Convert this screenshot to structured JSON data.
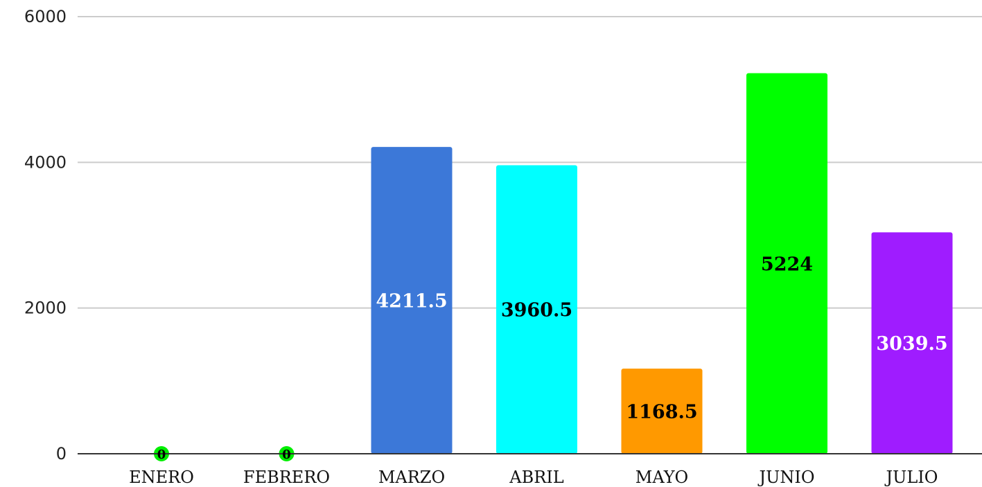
{
  "chart_data": {
    "type": "bar",
    "title": "",
    "xlabel": "",
    "ylabel": "",
    "ylim": [
      0,
      6000
    ],
    "yticks": [
      0,
      2000,
      4000,
      6000
    ],
    "ytick_labels": [
      "0",
      "2000",
      "4000",
      "6000"
    ],
    "grid": true,
    "legend": "none",
    "categories": [
      "ENERO",
      "FEBRERO",
      "MARZO",
      "ABRIL",
      "MAYO",
      "JUNIO",
      "JULIO"
    ],
    "values": [
      0,
      0,
      4211.5,
      3960.5,
      1168.5,
      5224,
      3039.5
    ],
    "data_labels": [
      "0",
      "0",
      "4211.5",
      "3960.5",
      "1168.5",
      "5224",
      "3039.5"
    ],
    "colors": [
      "#00ee00",
      "#00ee00",
      "#3c78d8",
      "#00ffff",
      "#ff9900",
      "#00ff00",
      "#9f1cff"
    ],
    "label_colors": [
      "#000000",
      "#000000",
      "#ffffff",
      "#000000",
      "#000000",
      "#000000",
      "#ffffff"
    ]
  }
}
